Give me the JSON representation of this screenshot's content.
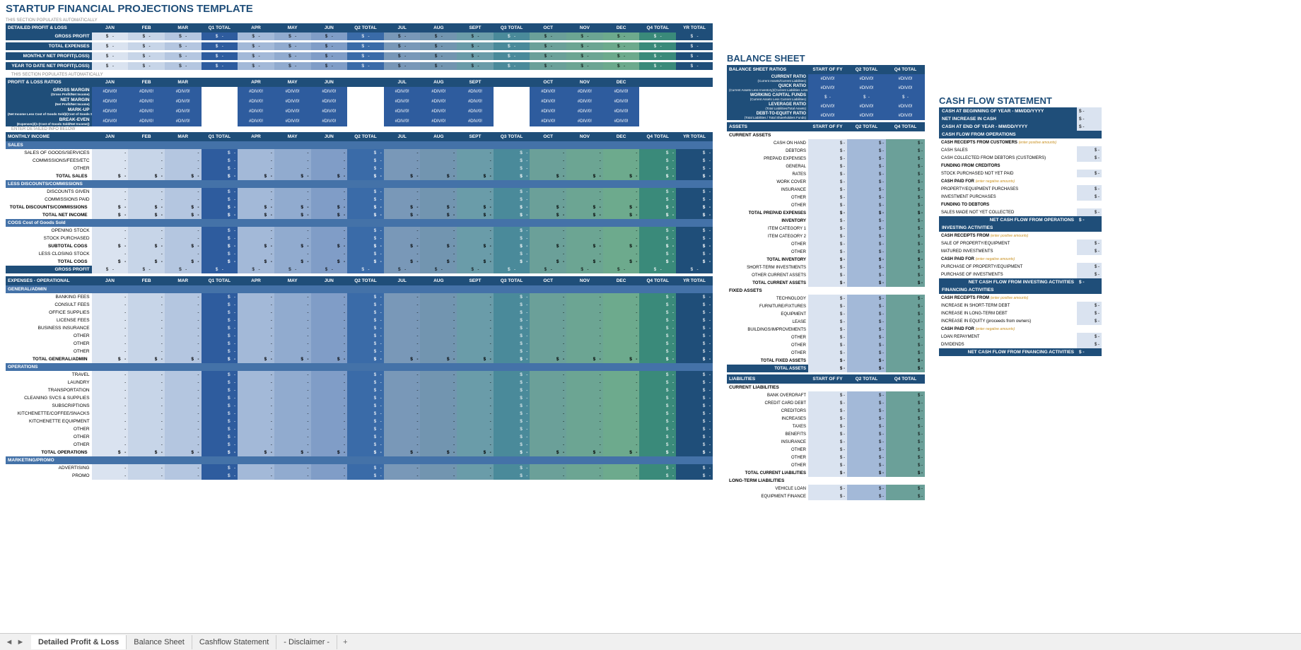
{
  "title": "STARTUP FINANCIAL PROJECTIONS TEMPLATE",
  "auto_note": "THIS SECTION POPULATES AUTOMATICALLY",
  "enter_note": "ENTER DETAILED INFO BELOW",
  "months": [
    "JAN",
    "FEB",
    "MAR",
    "Q1 TOTAL",
    "APR",
    "MAY",
    "JUN",
    "Q2 TOTAL",
    "JUL",
    "AUG",
    "SEPT",
    "Q3 TOTAL",
    "OCT",
    "NOV",
    "DEC",
    "Q4 TOTAL",
    "YR TOTAL"
  ],
  "months_only": [
    "JAN",
    "FEB",
    "MAR",
    "APR",
    "MAY",
    "JUN",
    "JUL",
    "AUG",
    "SEPT",
    "OCT",
    "NOV",
    "DEC"
  ],
  "pl_header": "DETAILED PROFIT & LOSS",
  "pl_summary": [
    "GROSS PROFIT",
    "TOTAL EXPENSES",
    "MONTHLY NET PROFIT(LOSS)",
    "YEAR TO DATE NET PROFIT(LOSS)"
  ],
  "ratios_header": "PROFIT & LOSS RATIOS",
  "ratios": [
    {
      "name": "GROSS MARGIN",
      "sub": "(Gross Profit/Net Income)"
    },
    {
      "name": "NET MARGIN",
      "sub": "(Net Profit/Net Income)"
    },
    {
      "name": "MARK-UP",
      "sub": "(Net Income Less Cost of Goods Sold)/(Cost of Goods Sold) x 100"
    },
    {
      "name": "BREAK-EVEN",
      "sub": "(Expenses)/(1-(Cost of Goods Sold/Net Income))"
    }
  ],
  "ratio_val": "#DIV/0!",
  "income_header": "MONTHLY INCOME",
  "income": {
    "sales_hdr": "SALES",
    "sales_items": [
      "SALES OF GOODS/SERVICES",
      "COMMISSIONS/FEES/ETC",
      "OTHER"
    ],
    "total_sales": "TOTAL SALES",
    "disc_hdr": "LESS DISCOUNTS/COMMISSIONS",
    "disc_items": [
      "DISCOUNTS GIVEN",
      "COMMISSIONS PAID"
    ],
    "total_disc": "TOTAL DISCOUNTS/COMMISSIONS",
    "total_net": "TOTAL NET INCOME",
    "cogs_hdr": "COGS Cost of Goods Sold",
    "cogs_items": [
      "OPENING STOCK",
      "STOCK PURCHASED"
    ],
    "subtotal_cogs": "SUBTOTAL COGS",
    "less_closing": "LESS CLOSING STOCK",
    "total_cogs": "TOTAL COGS",
    "gross_profit": "GROSS PROFIT"
  },
  "exp_header": "EXPENSES - OPERATIONAL",
  "exp": {
    "ga_hdr": "GENERAL/ADMIN",
    "ga_items": [
      "BANKING FEES",
      "CONSULT FEES",
      "OFFICE SUPPLIES",
      "LICENSE FEES",
      "BUSINESS INSURANCE",
      "OTHER",
      "OTHER",
      "OTHER"
    ],
    "total_ga": "TOTAL GENERAL/ADMIN",
    "ops_hdr": "OPERATIONS",
    "ops_items": [
      "TRAVEL",
      "LAUNDRY",
      "TRANSPORTATION",
      "CLEANING SVCS & SUPPLIES",
      "SUBSCRIPTIONS",
      "KITCHENETTE/COFFEE/SNACKS",
      "KITCHENETTE EQUIPMENT",
      "OTHER",
      "OTHER",
      "OTHER"
    ],
    "total_ops": "TOTAL OPERATIONS",
    "mkt_hdr": "MARKETING/PROMO",
    "mkt_items": [
      "ADVERTISING",
      "PROMO"
    ]
  },
  "balance": {
    "title": "BALANCE SHEET",
    "ratios_hdr": "BALANCE SHEET RATIOS",
    "cols": [
      "START OF FY",
      "Q2 TOTAL",
      "Q4 TOTAL"
    ],
    "ratios": [
      {
        "name": "CURRENT RATIO",
        "sub": "(Current Assets/Current Liabilities)"
      },
      {
        "name": "QUICK RATIO",
        "sub": "(Current Assets Less Inventory)/(Current Liabilities Less Bank Overdraft)"
      },
      {
        "name": "WORKING CAPITAL FUNDS",
        "sub": "(Current Assets Less Current Liabilities)"
      },
      {
        "name": "LEVERAGE RATIO",
        "sub": "(Total Liabilities/Total Assets)"
      },
      {
        "name": "DEBT-TO-EQUITY RATIO",
        "sub": "(Total Liabilities / Total Shareholders Funds)"
      }
    ],
    "assets_hdr": "ASSETS",
    "cur_assets_hdr": "CURRENT ASSETS",
    "cur_assets": [
      "CASH ON HAND",
      "DEBTORS",
      "PREPAID EXPENSES"
    ],
    "prepaid": [
      "GENERAL",
      "RATES",
      "WORK COVER",
      "INSURANCE",
      "OTHER",
      "OTHER"
    ],
    "total_prepaid": "TOTAL PREPAID EXPENSES",
    "inventory_hdr": "INVENTORY",
    "inventory": [
      "ITEM CATEGORY 1",
      "ITEM CATEGORY 2",
      "OTHER",
      "OTHER"
    ],
    "total_inv": "TOTAL INVENTORY",
    "st_inv": "SHORT-TERM INVESTMENTS",
    "other_ca": "OTHER CURRENT ASSETS",
    "total_ca": "TOTAL CURRENT ASSETS",
    "fa_hdr": "FIXED ASSETS",
    "fa_items": [
      "TECHNOLOGY",
      "FURNITURE/FIXTURES",
      "EQUIPMENT",
      "LEASE",
      "BUILDINGS/IMPROVEMENTS",
      "OTHER",
      "OTHER",
      "OTHER"
    ],
    "total_fa": "TOTAL FIXED ASSETS",
    "total_assets": "TOTAL ASSETS",
    "liab_hdr": "LIABILITIES",
    "cl_hdr": "CURRENT LIABILITIES",
    "cl_items": [
      "BANK OVERDRAFT",
      "CREDIT CARD DEBT",
      "CREDITORS",
      "INCREASES",
      "TAXES",
      "BENEFITS",
      "INSURANCE",
      "OTHER",
      "OTHER",
      "OTHER"
    ],
    "total_cl": "TOTAL CURRENT LIABILITIES",
    "ltl_hdr": "LONG-TERM LIABILITIES",
    "ltl_items": [
      "VEHICLE LOAN",
      "EQUIPMENT FINANCE"
    ]
  },
  "cashflow": {
    "title": "CASH FLOW STATEMENT",
    "top": [
      "CASH AT BEGINNING OF YEAR - MM/DD/YYYY",
      "NET INCREASE IN CASH",
      "CASH AT END OF YEAR - MM/DD/YYYY"
    ],
    "ops_hdr": "CASH FLOW FROM OPERATIONS",
    "receipts_cust": "CASH RECEIPTS FROM CUSTOMERS",
    "pos_note": "(enter positive amounts)",
    "neg_note": "(enter negative amounts)",
    "ops_items": [
      "CASH SALES",
      "CASH COLLECTED FROM DEBTORS (CUSTOMERS)"
    ],
    "fund_cred": "FUNDING FROM CREDITORS",
    "fund_cred_items": [
      "STOCK PURCHASED NOT YET PAID"
    ],
    "cash_paid": "CASH PAID FOR",
    "cash_paid_items": [
      "PROPERTY/EQUIPMENT PURCHASES",
      "INVESTMENT PURCHASES"
    ],
    "fund_debt": "FUNDING TO DEBTORS",
    "fund_debt_items": [
      "SALES MADE NOT YET COLLECTED"
    ],
    "net_ops": "NET CASH FLOW FROM OPERATIONS",
    "inv_hdr": "INVESTING ACTIVITIES",
    "inv_rec": "CASH RECEIPTS FROM",
    "inv_rec_items": [
      "SALE OF PROPERTY/EQUIPMENT",
      "MATURED INVESTMENTS"
    ],
    "inv_paid": "CASH PAID FOR",
    "inv_paid_items": [
      "PURCHASE OF PROPERTY/EQUIPMENT",
      "PURCHASE OF INVESTMENTS"
    ],
    "net_inv": "NET CASH FLOW FROM INVESTING ACTIVITIES",
    "fin_hdr": "FINANCING ACTIVITIES",
    "fin_rec": "CASH RECEIPTS FROM",
    "fin_rec_items": [
      "INCREASE IN SHORT-TERM DEBT",
      "INCREASE IN LONG-TERM DEBT",
      "INCREASE IN EQUITY (proceeds from owners)"
    ],
    "fin_paid": "CASH PAID FOR",
    "fin_paid_items": [
      "LOAN REPAYMENT",
      "DIVIDENDS"
    ],
    "net_fin": "NET CASH FLOW FROM FINANCING ACTIVITIES"
  },
  "dollar": "$",
  "dash": "-",
  "tabs": [
    "Detailed Profit & Loss",
    "Balance Sheet",
    "Cashflow Statement",
    "- Disclaimer -"
  ]
}
